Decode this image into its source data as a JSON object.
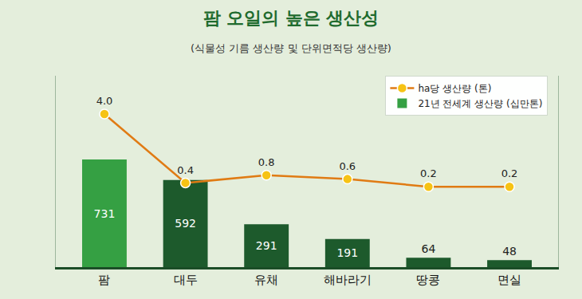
{
  "chart_data": {
    "type": "bar",
    "title": "팜 오일의 높은 생산성",
    "subtitle": "(식물성 기름 생산량 및 단위면적당 생산량)",
    "categories": [
      "팜",
      "대두",
      "유채",
      "해바라기",
      "땅콩",
      "면실"
    ],
    "series": [
      {
        "name": "ha당 생산량 (톤)",
        "type": "line",
        "axis": "y2",
        "color": "#e07b14",
        "marker": "circle",
        "values": [
          4.0,
          0.4,
          0.8,
          0.6,
          0.2,
          0.2
        ],
        "value_labels": [
          "4.0",
          "0.4",
          "0.8",
          "0.6",
          "0.2",
          "0.2"
        ]
      },
      {
        "name": "21년 전세계 생산량 (십만톤)",
        "type": "bar",
        "color": "#1d5a2c",
        "colors": [
          "#35a043",
          "#1d5a2c",
          "#1d5a2c",
          "#1d5a2c",
          "#1d5a2c",
          "#1d5a2c"
        ],
        "values": [
          731,
          592,
          291,
          191,
          64,
          48
        ]
      }
    ],
    "ylim": [
      0,
      1300
    ],
    "y2lim": [
      -4,
      6
    ],
    "data_labels": true,
    "tick_labels": "x",
    "legend": "top-right",
    "grid": false
  }
}
